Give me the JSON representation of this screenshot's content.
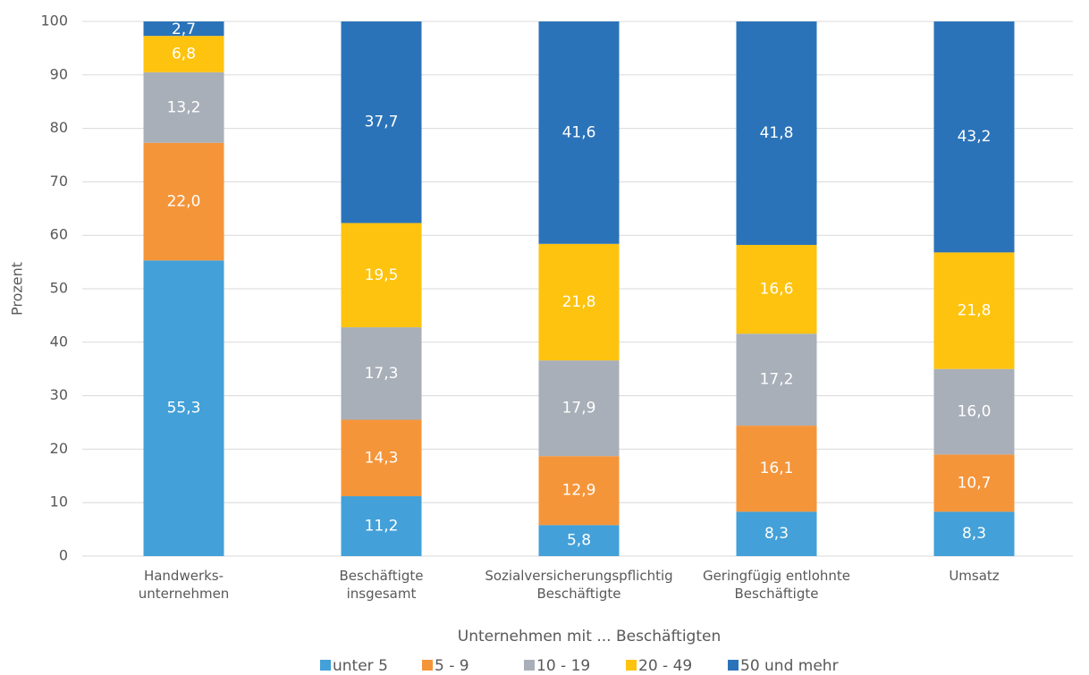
{
  "chart_data": {
    "type": "stacked_bar",
    "x_label": "Unternehmen mit ... Beschäftigten",
    "y_label": "Prozent",
    "categories": [
      [
        "Handwerks-",
        "unternehmen"
      ],
      [
        "Beschäftigte",
        "insgesamt"
      ],
      [
        "Sozialversicherungspflichtig",
        "Beschäftigte"
      ],
      [
        "Geringfügig entlohnte",
        "Beschäftigte"
      ],
      [
        "Umsatz"
      ]
    ],
    "series": [
      {
        "name": "unter 5",
        "color": "#43a0d8",
        "values": [
          55.3,
          11.2,
          5.8,
          8.3,
          8.3
        ],
        "value_labels": [
          "55,3",
          "11,2",
          "5,8",
          "8,3",
          "8,3"
        ]
      },
      {
        "name": "5 - 9",
        "color": "#f5953a",
        "values": [
          22.0,
          14.3,
          12.9,
          16.1,
          10.7
        ],
        "value_labels": [
          "22,0",
          "14,3",
          "12,9",
          "16,1",
          "10,7"
        ]
      },
      {
        "name": "10 - 19",
        "color": "#a9afb8",
        "values": [
          13.2,
          17.3,
          17.9,
          17.2,
          16.0
        ],
        "value_labels": [
          "13,2",
          "17,3",
          "17,9",
          "17,2",
          "16,0"
        ]
      },
      {
        "name": "20 - 49",
        "color": "#fdc30f",
        "values": [
          6.8,
          19.5,
          21.8,
          16.6,
          21.8
        ],
        "value_labels": [
          "6,8",
          "19,5",
          "21,8",
          "16,6",
          "21,8"
        ]
      },
      {
        "name": "50 und mehr",
        "color": "#2b73b9",
        "values": [
          2.7,
          37.7,
          41.6,
          41.8,
          43.2
        ],
        "value_labels": [
          "2,7",
          "37,7",
          "41,6",
          "41,8",
          "43,2"
        ]
      }
    ],
    "ylim": [
      0,
      100
    ],
    "yticks": [
      0,
      10,
      20,
      30,
      40,
      50,
      60,
      70,
      80,
      90,
      100
    ],
    "grid": true,
    "legend": "bottom"
  }
}
